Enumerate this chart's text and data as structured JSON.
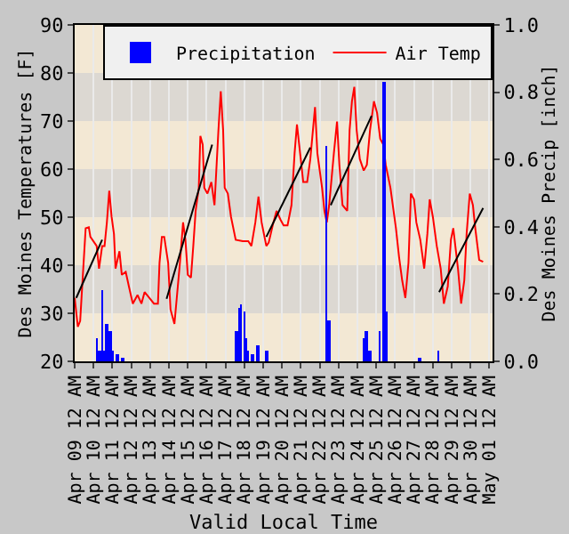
{
  "chart_data": {
    "type": "line",
    "xlabel": "Valid Local Time",
    "ylabel": "Des Moines Temperatures [F]",
    "y2label": "Des Moines Precip [inch]",
    "xlim": [
      "--04-09T00:00",
      "--05-01T04:00"
    ],
    "xticks": [
      {
        "value": "--04-09T00:00",
        "label": "Apr 09 12 AM"
      },
      {
        "value": "--04-10T00:00",
        "label": "Apr 10 12 AM"
      },
      {
        "value": "--04-11T00:00",
        "label": "Apr 11 12 AM"
      },
      {
        "value": "--04-12T00:00",
        "label": "Apr 12 12 AM"
      },
      {
        "value": "--04-13T00:00",
        "label": "Apr 13 12 AM"
      },
      {
        "value": "--04-14T00:00",
        "label": "Apr 14 12 AM"
      },
      {
        "value": "--04-15T00:00",
        "label": "Apr 15 12 AM"
      },
      {
        "value": "--04-16T00:00",
        "label": "Apr 16 12 AM"
      },
      {
        "value": "--04-17T00:00",
        "label": "Apr 17 12 AM"
      },
      {
        "value": "--04-18T00:00",
        "label": "Apr 18 12 AM"
      },
      {
        "value": "--04-19T00:00",
        "label": "Apr 19 12 AM"
      },
      {
        "value": "--04-20T00:00",
        "label": "Apr 20 12 AM"
      },
      {
        "value": "--04-21T00:00",
        "label": "Apr 21 12 AM"
      },
      {
        "value": "--04-22T00:00",
        "label": "Apr 22 12 AM"
      },
      {
        "value": "--04-23T00:00",
        "label": "Apr 23 12 AM"
      },
      {
        "value": "--04-24T00:00",
        "label": "Apr 24 12 AM"
      },
      {
        "value": "--04-25T00:00",
        "label": "Apr 25 12 AM"
      },
      {
        "value": "--04-26T00:00",
        "label": "Apr 26 12 AM"
      },
      {
        "value": "--04-27T00:00",
        "label": "Apr 27 12 AM"
      },
      {
        "value": "--04-28T00:00",
        "label": "Apr 28 12 AM"
      },
      {
        "value": "--04-29T00:00",
        "label": "Apr 29 12 AM"
      },
      {
        "value": "--04-30T00:00",
        "label": "Apr 30 12 AM"
      },
      {
        "value": "--05-01T00:00",
        "label": "May 01 12 AM"
      }
    ],
    "ylim": [
      20,
      90
    ],
    "yticks": [
      20,
      30,
      40,
      50,
      60,
      70,
      80,
      90
    ],
    "y2lim": [
      0,
      1
    ],
    "y2ticks": [
      {
        "value": 0,
        "label": "0.0"
      },
      0.2,
      0.4,
      0.6,
      0.8,
      {
        "value": 1,
        "label": "1.0"
      }
    ],
    "grid": "x",
    "legend": "top right",
    "bands": [
      {
        "axis": "y",
        "from": 20,
        "to": 30,
        "color": "#f3e8d4"
      },
      {
        "axis": "y",
        "from": 30,
        "to": 40,
        "color": "#dcd8d2"
      },
      {
        "axis": "y",
        "from": 40,
        "to": 50,
        "color": "#f3e8d4"
      },
      {
        "axis": "y",
        "from": 50,
        "to": 60,
        "color": "#dcd8d2"
      },
      {
        "axis": "y",
        "from": 60,
        "to": 70,
        "color": "#f3e8d4"
      },
      {
        "axis": "y",
        "from": 70,
        "to": 80,
        "color": "#dcd8d2"
      },
      {
        "axis": "y",
        "from": 80,
        "to": 90,
        "color": "#f3e8d4"
      }
    ],
    "series": [
      {
        "name": "Precipitation",
        "type": "bar",
        "axis": "y2",
        "color": "#0000ff",
        "x": [
          "--04-10T04:00",
          "--04-10T07:00",
          "--04-10T11:00",
          "--04-10T15:00",
          "--04-10T17:00",
          "--04-10T21:00",
          "--04-10T23:00",
          "--04-11T07:00",
          "--04-11T13:00",
          "--04-17T14:00",
          "--04-17T18:00",
          "--04-17T20:00",
          "--04-18T00:00",
          "--04-18T02:00",
          "--04-18T05:00",
          "--04-18T11:00",
          "--04-18T17:00",
          "--04-19T04:00",
          "--04-22T08:00",
          "--04-22T12:00",
          "--04-24T08:00",
          "--04-24T12:00",
          "--04-24T16:00",
          "--04-25T04:00",
          "--04-25T10:00",
          "--04-25T13:00",
          "--04-27T07:00",
          "--04-28T07:00"
        ],
        "values": [
          0.07,
          0.03,
          0.21,
          0.03,
          0.11,
          0.09,
          0.03,
          0.02,
          0.01,
          0.09,
          0.16,
          0.17,
          0.15,
          0.07,
          0.03,
          0.02,
          0.05,
          0.03,
          0.64,
          0.12,
          0.07,
          0.09,
          0.03,
          0.09,
          0.83,
          0.15,
          0.01,
          0.03
        ]
      },
      {
        "name": "Air Temp",
        "color": "#ff0000",
        "x": [
          "--04-09T00:00",
          "--04-09T04:00",
          "--04-09T07:00",
          "--04-09T10:00",
          "--04-09T14:00",
          "--04-09T18:00",
          "--04-09T20:00",
          "--04-10T04:00",
          "--04-10T07:00",
          "--04-10T11:00",
          "--04-10T14:00",
          "--04-10T17:00",
          "--04-10T20:00",
          "--04-10T23:00",
          "--04-11T02:00",
          "--04-11T04:00",
          "--04-11T09:00",
          "--04-11T12:00",
          "--04-11T17:00",
          "--04-11T21:00",
          "--04-12T02:00",
          "--04-12T08:00",
          "--04-12T13:00",
          "--04-12T17:00",
          "--04-12T23:00",
          "--04-13T05:00",
          "--04-13T10:00",
          "--04-13T12:00",
          "--04-13T15:00",
          "--04-13T18:00",
          "--04-13T23:00",
          "--04-14T02:00",
          "--04-14T07:00",
          "--04-14T10:00",
          "--04-14T14:00",
          "--04-14T18:00",
          "--04-14T21:00",
          "--04-15T00:00",
          "--04-15T04:00",
          "--04-15T07:00",
          "--04-15T10:00",
          "--04-15T14:00",
          "--04-15T16:00",
          "--04-15T19:00",
          "--04-15T21:00",
          "--04-16T01:00",
          "--04-16T06:00",
          "--04-16T10:00",
          "--04-16T15:00",
          "--04-16T18:00",
          "--04-16T21:00",
          "--04-16T23:00",
          "--04-17T03:00",
          "--04-17T07:00",
          "--04-17T13:00",
          "--04-17T22:00",
          "--04-18T05:00",
          "--04-18T09:00",
          "--04-18T14:00",
          "--04-18T18:00",
          "--04-18T22:00",
          "--04-19T04:00",
          "--04-19T07:00",
          "--04-19T13:00",
          "--04-19T17:00",
          "--04-19T22:00",
          "--04-20T02:00",
          "--04-20T07:00",
          "--04-20T12:00",
          "--04-20T16:00",
          "--04-20T19:00",
          "--04-20T23:00",
          "--04-21T03:00",
          "--04-21T08:00",
          "--04-21T12:00",
          "--04-21T18:00",
          "--04-21T21:00",
          "--04-22T03:00",
          "--04-22T06:00",
          "--04-22T09:00",
          "--04-22T12:00",
          "--04-22T18:00",
          "--04-22T22:00",
          "--04-23T01:00",
          "--04-23T05:00",
          "--04-23T11:00",
          "--04-23T14:00",
          "--04-23T17:00",
          "--04-23T20:00",
          "--04-23T23:00",
          "--04-24T03:00",
          "--04-24T08:00",
          "--04-24T12:00",
          "--04-24T16:00",
          "--04-24T21:00",
          "--04-25T01:00",
          "--04-25T05:00",
          "--04-25T09:00",
          "--04-25T12:00",
          "--04-25T15:00",
          "--04-25T18:00",
          "--04-25T22:00",
          "--04-26T01:00",
          "--04-26T05:00",
          "--04-26T09:00",
          "--04-26T13:00",
          "--04-26T17:00",
          "--04-26T20:00",
          "--04-27T00:00",
          "--04-27T03:00",
          "--04-27T08:00",
          "--04-27T13:00",
          "--04-27T17:00",
          "--04-27T20:00",
          "--04-28T00:00",
          "--04-28T05:00",
          "--04-28T10:00",
          "--04-28T14:00",
          "--04-28T19:00",
          "--04-28T23:00",
          "--04-29T02:00",
          "--04-29T08:00",
          "--04-29T12:00",
          "--04-29T16:00",
          "--04-29T19:00",
          "--04-29T23:00",
          "--04-30T03:00",
          "--04-30T06:00",
          "--04-30T11:00",
          "--04-30T16:00"
        ],
        "values": [
          33.2,
          27.2,
          28.4,
          36.8,
          47.7,
          47.9,
          45.9,
          44,
          39.3,
          44,
          44,
          48.9,
          55.5,
          50.1,
          46.5,
          39.3,
          42.9,
          38,
          38.6,
          35.6,
          32,
          33.8,
          32,
          34.4,
          33.2,
          32,
          32,
          40.5,
          45.9,
          45.9,
          40.5,
          30.8,
          27.8,
          33.2,
          40.5,
          48.9,
          45.3,
          38,
          37.4,
          44,
          51.3,
          56.1,
          66.9,
          65.1,
          56.1,
          54.9,
          57.3,
          52.5,
          68.1,
          76.2,
          68.1,
          56.1,
          54.9,
          50.1,
          45.3,
          45,
          45,
          44,
          48.9,
          54.3,
          48.9,
          44,
          44.7,
          48.9,
          51.3,
          49.5,
          48.3,
          48.3,
          52.5,
          63.3,
          69.3,
          63.3,
          57.3,
          57.3,
          62.1,
          72.9,
          63.3,
          56.1,
          51.3,
          48.9,
          52.5,
          63.3,
          69.9,
          60.9,
          52.5,
          51.3,
          68.1,
          74.1,
          77.1,
          68.1,
          62.1,
          59.7,
          60.9,
          68.1,
          74.1,
          71.7,
          66.3,
          65.1,
          60.9,
          58.5,
          56.1,
          51.3,
          47.7,
          41.7,
          36.8,
          33.2,
          40.5,
          54.9,
          53.7,
          48.9,
          45.3,
          39.3,
          46.5,
          53.7,
          50.1,
          44,
          39.3,
          32,
          35.6,
          45.3,
          47.7,
          39.3,
          32,
          36.8,
          46.5,
          54.9,
          52.5,
          47.7,
          41.1,
          40.7
        ]
      },
      {
        "color": "#000000",
        "x": [
          "--04-09T02:00",
          "--04-10T11:00",
          "--04-12T00:00",
          "--04-13T21:00",
          "--04-16T07:00",
          "--04-18T00:00",
          "--04-19T04:00",
          "--04-21T12:00",
          "--04-22T00:00",
          "--04-22T14:00",
          "--04-24T18:00",
          "--04-26T00:00",
          "--04-28T08:00",
          "--04-30T16:00"
        ],
        "values": [
          33.2,
          45.3,
          null,
          33,
          65.1,
          null,
          45.9,
          64.5,
          null,
          52.5,
          71.1,
          null,
          34.4,
          51.9
        ]
      }
    ]
  }
}
